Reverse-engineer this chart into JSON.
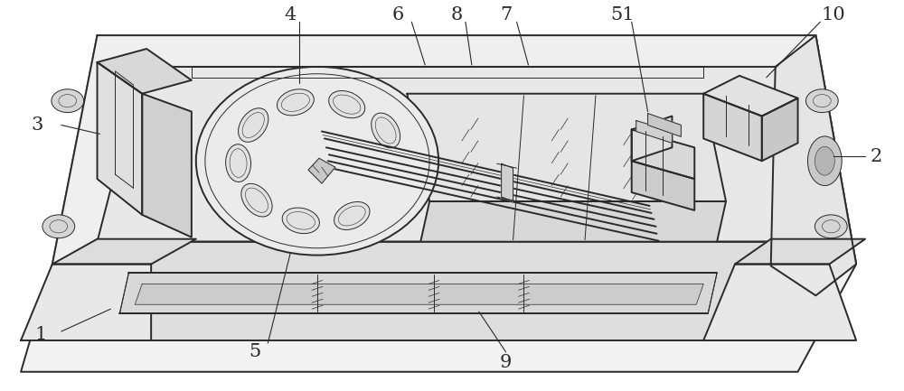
{
  "background_color": "#ffffff",
  "line_color": "#2a2a2a",
  "lw_main": 1.4,
  "lw_thin": 0.7,
  "lw_hair": 0.5,
  "label_fontsize": 15,
  "figsize": [
    10,
    4.33
  ],
  "dpi": 100
}
